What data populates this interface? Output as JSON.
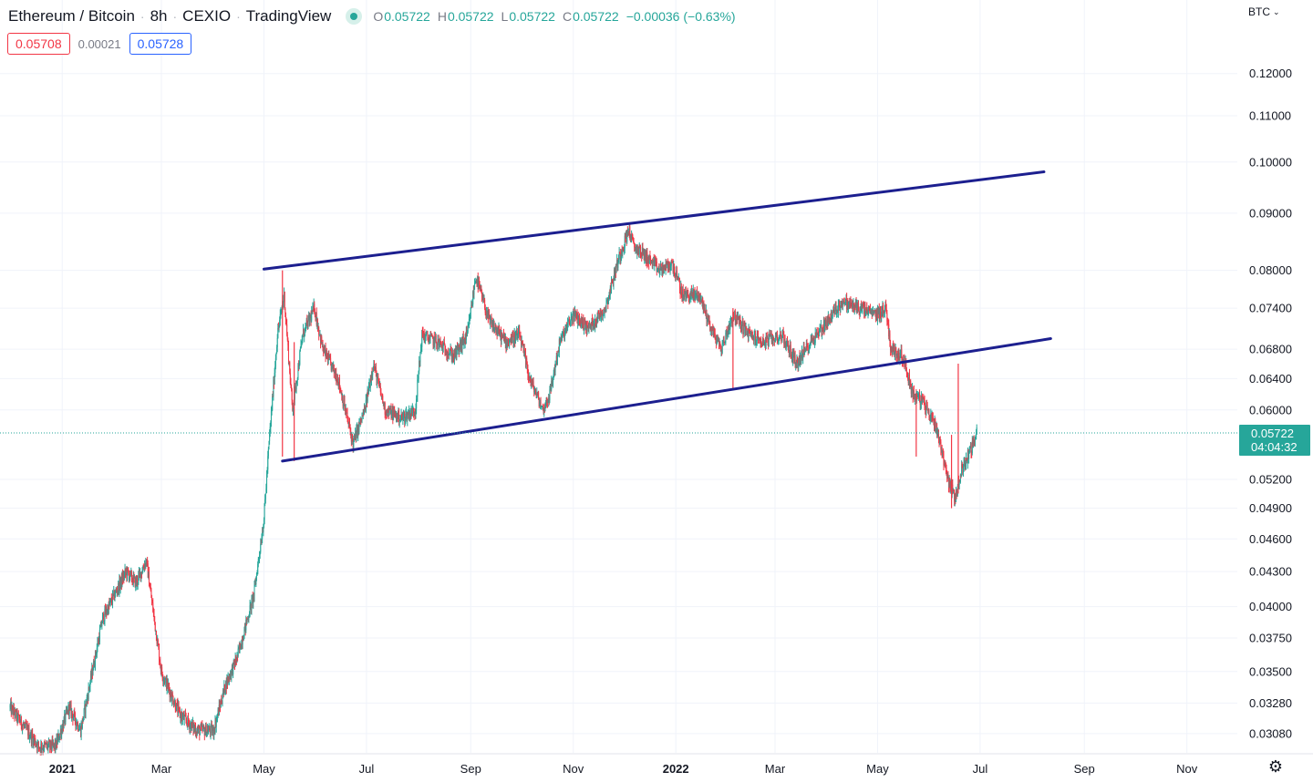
{
  "header": {
    "symbol": "Ethereum / Bitcoin",
    "interval": "8h",
    "exchange": "CEXIO",
    "source": "TradingView",
    "ohlc": {
      "open_label": "O",
      "open": "0.05722",
      "high_label": "H",
      "high": "0.05722",
      "low_label": "L",
      "low": "0.05722",
      "close_label": "C",
      "close": "0.05722",
      "change": "−0.00036 (−0.63%)"
    }
  },
  "quote": {
    "bid": "0.05708",
    "spread": "0.00021",
    "ask": "0.05728"
  },
  "price_scale": {
    "currency": "BTC",
    "chevron": "⌄",
    "last_price": "0.05722",
    "countdown": "04:04:32"
  },
  "icons": {
    "settings": "gear-icon",
    "currency_menu": "chevron-down-icon"
  },
  "colors": {
    "up": "#26a69a",
    "down": "#f23645",
    "channel": "#1c1f8f",
    "last_price_line": "#26a69a",
    "grid": "#f0f3fa"
  },
  "chart_data": {
    "type": "candlestick",
    "title": "Ethereum / Bitcoin",
    "interval": "8h",
    "y_scale": "log",
    "y_ticks": [
      "0.12000",
      "0.11000",
      "0.10000",
      "0.09000",
      "0.08000",
      "0.07400",
      "0.06800",
      "0.06400",
      "0.06000",
      "0.05200",
      "0.04900",
      "0.04600",
      "0.04300",
      "0.04000",
      "0.03750",
      "0.03500",
      "0.03280",
      "0.03080"
    ],
    "x_ticks": [
      "2021",
      "Mar",
      "May",
      "Jul",
      "Sep",
      "Nov",
      "2022",
      "Mar",
      "May",
      "Jul",
      "Sep",
      "Nov"
    ],
    "x_tick_dates": [
      "2021-01-01",
      "2021-03-01",
      "2021-05-01",
      "2021-07-01",
      "2021-09-01",
      "2021-11-01",
      "2022-01-01",
      "2022-03-01",
      "2022-05-01",
      "2022-07-01",
      "2022-09-01",
      "2022-11-01"
    ],
    "x_range": [
      "2020-11-25",
      "2022-12-01"
    ],
    "y_range": [
      0.0296,
      0.131
    ],
    "grid": true,
    "last_price": 0.05722,
    "price_path": [
      [
        "2020-12-01",
        0.0325
      ],
      [
        "2020-12-18",
        0.03
      ],
      [
        "2020-12-28",
        0.03
      ],
      [
        "2021-01-05",
        0.0325
      ],
      [
        "2021-01-12",
        0.031
      ],
      [
        "2021-01-25",
        0.039
      ],
      [
        "2021-02-08",
        0.043
      ],
      [
        "2021-02-14",
        0.042
      ],
      [
        "2021-02-20",
        0.044
      ],
      [
        "2021-03-01",
        0.035
      ],
      [
        "2021-03-12",
        0.032
      ],
      [
        "2021-03-22",
        0.031
      ],
      [
        "2021-04-01",
        0.031
      ],
      [
        "2021-04-08",
        0.034
      ],
      [
        "2021-04-15",
        0.036
      ],
      [
        "2021-04-25",
        0.041
      ],
      [
        "2021-05-01",
        0.048
      ],
      [
        "2021-05-04",
        0.056
      ],
      [
        "2021-05-09",
        0.07
      ],
      [
        "2021-05-13",
        0.076
      ],
      [
        "2021-05-18",
        0.06
      ],
      [
        "2021-05-24",
        0.07
      ],
      [
        "2021-05-31",
        0.074
      ],
      [
        "2021-06-05",
        0.068
      ],
      [
        "2021-06-14",
        0.064
      ],
      [
        "2021-06-23",
        0.056
      ],
      [
        "2021-06-30",
        0.06
      ],
      [
        "2021-07-05",
        0.066
      ],
      [
        "2021-07-12",
        0.06
      ],
      [
        "2021-07-22",
        0.059
      ],
      [
        "2021-07-30",
        0.06
      ],
      [
        "2021-08-03",
        0.07
      ],
      [
        "2021-08-12",
        0.069
      ],
      [
        "2021-08-22",
        0.067
      ],
      [
        "2021-08-30",
        0.07
      ],
      [
        "2021-09-04",
        0.079
      ],
      [
        "2021-09-12",
        0.072
      ],
      [
        "2021-09-22",
        0.069
      ],
      [
        "2021-09-30",
        0.07
      ],
      [
        "2021-10-06",
        0.064
      ],
      [
        "2021-10-14",
        0.06
      ],
      [
        "2021-10-18",
        0.062
      ],
      [
        "2021-10-24",
        0.069
      ],
      [
        "2021-11-01",
        0.073
      ],
      [
        "2021-11-10",
        0.071
      ],
      [
        "2021-11-20",
        0.074
      ],
      [
        "2021-11-28",
        0.082
      ],
      [
        "2021-12-04",
        0.087
      ],
      [
        "2021-12-07",
        0.084
      ],
      [
        "2021-12-12",
        0.083
      ],
      [
        "2021-12-22",
        0.08
      ],
      [
        "2021-12-30",
        0.081
      ],
      [
        "2022-01-05",
        0.076
      ],
      [
        "2022-01-15",
        0.076
      ],
      [
        "2022-01-22",
        0.071
      ],
      [
        "2022-01-28",
        0.068
      ],
      [
        "2022-02-04",
        0.073
      ],
      [
        "2022-02-14",
        0.07
      ],
      [
        "2022-02-22",
        0.069
      ],
      [
        "2022-03-05",
        0.07
      ],
      [
        "2022-03-14",
        0.066
      ],
      [
        "2022-03-22",
        0.069
      ],
      [
        "2022-04-01",
        0.072
      ],
      [
        "2022-04-10",
        0.075
      ],
      [
        "2022-04-20",
        0.074
      ],
      [
        "2022-04-30",
        0.073
      ],
      [
        "2022-05-06",
        0.074
      ],
      [
        "2022-05-09",
        0.068
      ],
      [
        "2022-05-16",
        0.067
      ],
      [
        "2022-05-22",
        0.062
      ],
      [
        "2022-05-28",
        0.061
      ],
      [
        "2022-06-05",
        0.058
      ],
      [
        "2022-06-12",
        0.052
      ],
      [
        "2022-06-16",
        0.05
      ],
      [
        "2022-06-20",
        0.053
      ],
      [
        "2022-06-27",
        0.056
      ],
      [
        "2022-06-29",
        0.05722
      ]
    ],
    "wick_spikes": [
      {
        "date": "2021-05-12",
        "high": 0.08,
        "low": 0.0545
      },
      {
        "date": "2021-05-19",
        "high": 0.069,
        "low": 0.054
      },
      {
        "date": "2022-02-04",
        "high": 0.074,
        "low": 0.0626
      },
      {
        "date": "2022-05-24",
        "high": 0.062,
        "low": 0.0545
      },
      {
        "date": "2022-06-18",
        "high": 0.066,
        "low": 0.0505
      },
      {
        "date": "2022-06-14",
        "high": 0.057,
        "low": 0.049
      }
    ],
    "trendlines": [
      {
        "name": "channel-upper",
        "from": {
          "date": "2021-05-01",
          "price": 0.0802
        },
        "to": {
          "date": "2022-08-08",
          "price": 0.098
        }
      },
      {
        "name": "channel-lower",
        "from": {
          "date": "2021-05-12",
          "price": 0.054
        },
        "to": {
          "date": "2022-08-12",
          "price": 0.0695
        }
      }
    ]
  }
}
